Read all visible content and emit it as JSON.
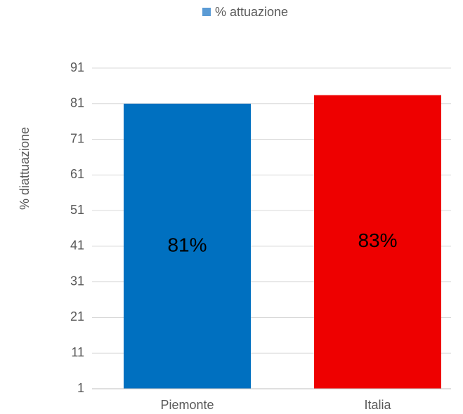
{
  "chart_data": {
    "type": "bar",
    "legend": "% attuazione",
    "legend_color": "#5b9bd5",
    "legend_position": "top",
    "y_label": "% diattuazione",
    "categories": [
      "Piemonte",
      "Italia"
    ],
    "values": [
      81,
      83.4
    ],
    "value_labels": [
      "81%",
      "83%"
    ],
    "colors": [
      "#0070c0",
      "#ee0000"
    ],
    "ylim": [
      1,
      91
    ],
    "yticks": [
      1,
      11,
      21,
      31,
      41,
      51,
      61,
      71,
      81,
      91
    ],
    "grid": true
  }
}
